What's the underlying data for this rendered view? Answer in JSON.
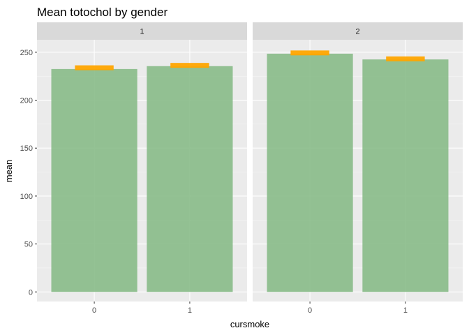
{
  "chart_data": {
    "type": "bar",
    "title": "Mean totochol by gender",
    "xlabel": "cursmoke",
    "ylabel": "mean",
    "facet_variable": "gender",
    "ylim": [
      -10,
      263
    ],
    "yticks": [
      0,
      50,
      100,
      150,
      200,
      250
    ],
    "grid": true,
    "panels": [
      {
        "facet": "1",
        "categories": [
          "0",
          "1"
        ],
        "values": [
          232.5,
          235.5
        ],
        "marker_values": [
          233.8,
          236.3
        ]
      },
      {
        "facet": "2",
        "categories": [
          "0",
          "1"
        ],
        "values": [
          248.5,
          242.5
        ],
        "marker_values": [
          249.3,
          243.1
        ]
      }
    ],
    "colors": {
      "bar": "#88bb88",
      "marker": "#ffa500",
      "panel_background": "#ebebeb",
      "strip_background": "#d9d9d9",
      "grid": "#ffffff"
    }
  }
}
